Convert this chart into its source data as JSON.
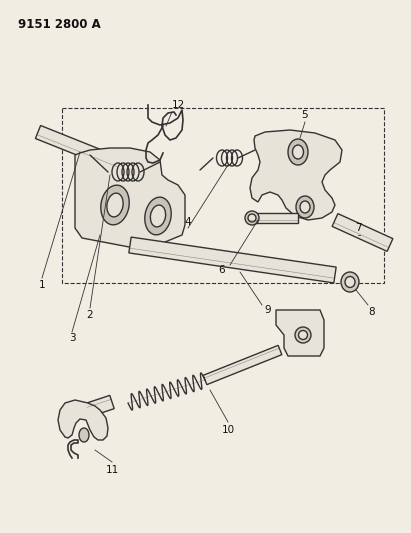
{
  "title": "9151 2800 A",
  "bg_color": "#f2ede3",
  "line_color": "#333333",
  "text_color": "#111111",
  "fig_width": 4.11,
  "fig_height": 5.33,
  "dpi": 100
}
